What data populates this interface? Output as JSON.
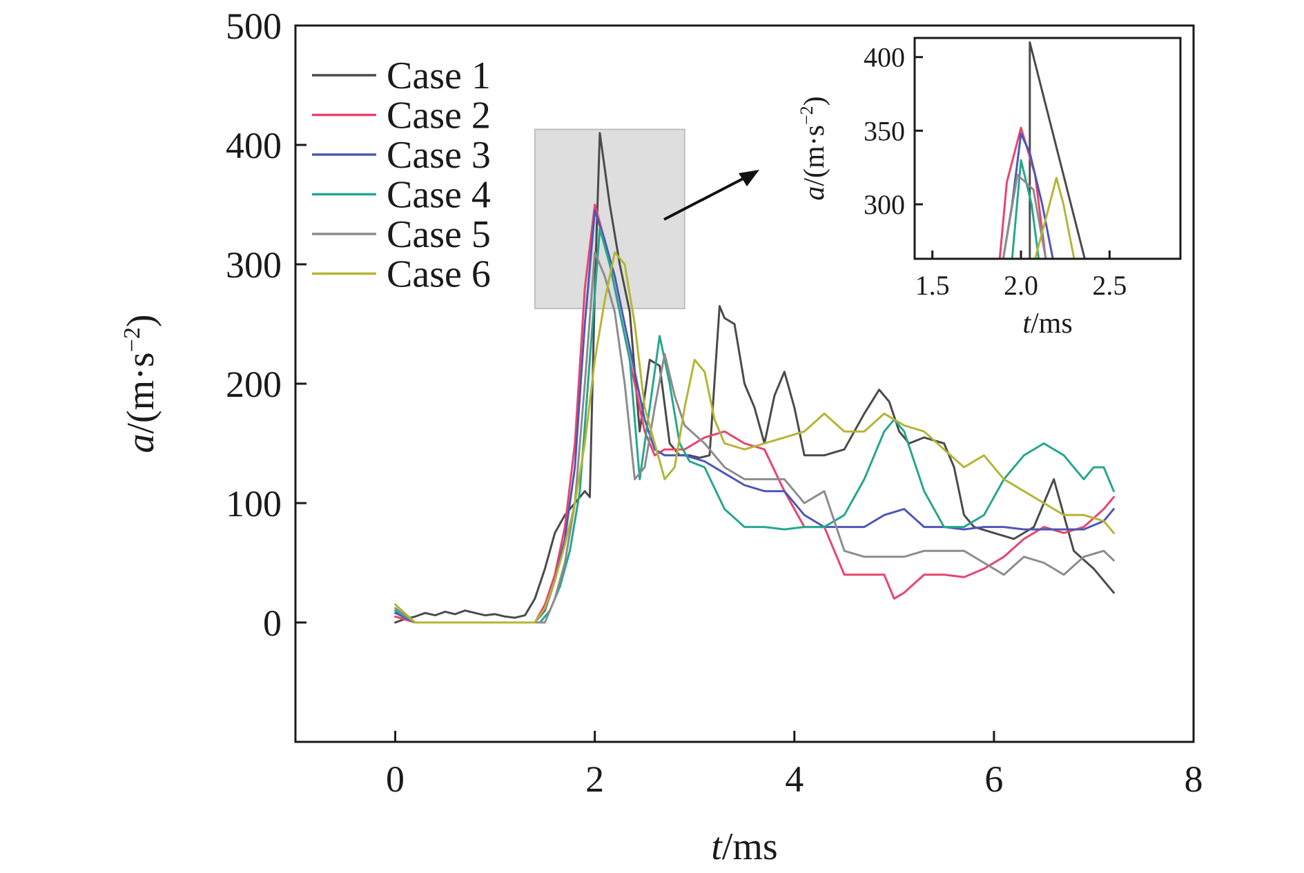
{
  "chart_data": {
    "type": "line",
    "xlabel_italic": "t",
    "xlabel_unit": "/ms",
    "ylabel_italic": "a",
    "ylabel_unit": "/(m·s",
    "ylabel_sup": "−2",
    "ylabel_close": ")",
    "xlim": [
      -1,
      8
    ],
    "ylim": [
      -100,
      500
    ],
    "xticks": [
      0,
      2,
      4,
      6,
      8
    ],
    "yticks": [
      0,
      100,
      200,
      300,
      400,
      500
    ],
    "grid": false,
    "legend_position": "top-left",
    "series": [
      {
        "name": "Case 1",
        "color": "#4a4a4a",
        "x": [
          0,
          0.1,
          0.2,
          0.3,
          0.4,
          0.5,
          0.6,
          0.7,
          0.8,
          0.9,
          1.0,
          1.1,
          1.2,
          1.3,
          1.4,
          1.5,
          1.6,
          1.7,
          1.8,
          1.9,
          1.95,
          2.0,
          2.05,
          2.15,
          2.25,
          2.35,
          2.45,
          2.55,
          2.65,
          2.75,
          2.85,
          2.95,
          3.05,
          3.15,
          3.25,
          3.3,
          3.4,
          3.5,
          3.6,
          3.7,
          3.8,
          3.9,
          4.0,
          4.1,
          4.2,
          4.3,
          4.5,
          4.7,
          4.85,
          4.95,
          5.05,
          5.15,
          5.3,
          5.5,
          5.6,
          5.7,
          5.8,
          6.0,
          6.2,
          6.4,
          6.6,
          6.8,
          7.0,
          7.2
        ],
        "y": [
          0,
          3,
          5,
          8,
          6,
          9,
          7,
          10,
          8,
          6,
          7,
          5,
          4,
          6,
          20,
          45,
          75,
          90,
          100,
          110,
          105,
          280,
          410,
          350,
          300,
          260,
          160,
          220,
          215,
          150,
          140,
          140,
          138,
          140,
          265,
          255,
          250,
          200,
          180,
          150,
          190,
          210,
          180,
          140,
          140,
          140,
          145,
          175,
          195,
          185,
          160,
          150,
          155,
          150,
          130,
          90,
          80,
          75,
          70,
          80,
          120,
          60,
          45,
          25
        ]
      },
      {
        "name": "Case 2",
        "color": "#e8446e",
        "x": [
          0,
          0.2,
          0.5,
          1.0,
          1.4,
          1.5,
          1.6,
          1.7,
          1.8,
          1.9,
          2.0,
          2.1,
          2.2,
          2.3,
          2.4,
          2.5,
          2.6,
          2.7,
          2.9,
          3.1,
          3.3,
          3.5,
          3.7,
          3.9,
          4.1,
          4.3,
          4.5,
          4.7,
          4.9,
          5.0,
          5.1,
          5.3,
          5.5,
          5.7,
          5.9,
          6.1,
          6.3,
          6.5,
          6.7,
          6.9,
          7.1,
          7.2
        ],
        "y": [
          5,
          0,
          0,
          0,
          0,
          15,
          40,
          80,
          150,
          280,
          350,
          320,
          280,
          240,
          200,
          160,
          140,
          145,
          145,
          155,
          160,
          150,
          145,
          110,
          80,
          80,
          40,
          40,
          40,
          20,
          25,
          40,
          40,
          38,
          45,
          55,
          70,
          80,
          75,
          80,
          95,
          105
        ]
      },
      {
        "name": "Case 3",
        "color": "#4c57b5",
        "x": [
          0,
          0.2,
          0.5,
          1.0,
          1.4,
          1.5,
          1.6,
          1.7,
          1.8,
          1.9,
          2.0,
          2.1,
          2.2,
          2.3,
          2.4,
          2.5,
          2.6,
          2.7,
          2.9,
          3.1,
          3.3,
          3.5,
          3.7,
          3.9,
          4.1,
          4.3,
          4.5,
          4.7,
          4.9,
          5.1,
          5.3,
          5.5,
          5.7,
          5.9,
          6.1,
          6.3,
          6.5,
          6.7,
          6.9,
          7.1,
          7.2
        ],
        "y": [
          8,
          0,
          0,
          0,
          0,
          10,
          35,
          70,
          130,
          250,
          345,
          320,
          290,
          250,
          210,
          170,
          145,
          140,
          140,
          135,
          125,
          115,
          110,
          110,
          90,
          80,
          80,
          80,
          90,
          95,
          80,
          80,
          78,
          80,
          80,
          78,
          78,
          78,
          78,
          85,
          95
        ]
      },
      {
        "name": "Case 4",
        "color": "#26a68e",
        "x": [
          0,
          0.2,
          0.5,
          1.0,
          1.45,
          1.55,
          1.65,
          1.75,
          1.85,
          1.95,
          2.05,
          2.15,
          2.25,
          2.35,
          2.45,
          2.55,
          2.65,
          2.75,
          2.85,
          2.95,
          3.1,
          3.3,
          3.5,
          3.7,
          3.9,
          4.1,
          4.3,
          4.5,
          4.7,
          4.9,
          5.0,
          5.1,
          5.3,
          5.5,
          5.7,
          5.9,
          6.1,
          6.3,
          6.5,
          6.7,
          6.9,
          7.0,
          7.1,
          7.2
        ],
        "y": [
          10,
          0,
          0,
          0,
          0,
          10,
          30,
          60,
          110,
          220,
          330,
          300,
          260,
          220,
          120,
          180,
          240,
          200,
          150,
          135,
          130,
          95,
          80,
          80,
          78,
          80,
          80,
          90,
          120,
          160,
          170,
          160,
          110,
          80,
          80,
          90,
          120,
          140,
          150,
          140,
          120,
          130,
          130,
          110
        ]
      },
      {
        "name": "Case 5",
        "color": "#8c8c8c",
        "x": [
          0,
          0.2,
          0.5,
          1.0,
          1.5,
          1.6,
          1.7,
          1.8,
          1.9,
          2.0,
          2.1,
          2.2,
          2.3,
          2.4,
          2.5,
          2.6,
          2.7,
          2.8,
          2.9,
          3.1,
          3.3,
          3.5,
          3.7,
          3.9,
          4.1,
          4.3,
          4.5,
          4.7,
          4.9,
          5.1,
          5.3,
          5.5,
          5.7,
          5.9,
          6.1,
          6.3,
          6.5,
          6.7,
          6.9,
          7.1,
          7.2
        ],
        "y": [
          12,
          0,
          0,
          0,
          0,
          20,
          50,
          100,
          200,
          310,
          290,
          260,
          200,
          120,
          130,
          180,
          225,
          190,
          165,
          150,
          130,
          120,
          120,
          120,
          100,
          110,
          60,
          55,
          55,
          55,
          60,
          60,
          60,
          50,
          40,
          55,
          50,
          40,
          55,
          60,
          52
        ]
      },
      {
        "name": "Case 6",
        "color": "#b3b534",
        "x": [
          0,
          0.2,
          0.5,
          1.0,
          1.4,
          1.5,
          1.6,
          1.7,
          1.8,
          1.9,
          2.0,
          2.1,
          2.2,
          2.3,
          2.4,
          2.5,
          2.6,
          2.7,
          2.8,
          2.9,
          3.0,
          3.1,
          3.2,
          3.3,
          3.5,
          3.7,
          3.9,
          4.1,
          4.3,
          4.5,
          4.7,
          4.9,
          5.1,
          5.3,
          5.5,
          5.7,
          5.9,
          6.1,
          6.3,
          6.5,
          6.7,
          6.9,
          7.1,
          7.2
        ],
        "y": [
          15,
          0,
          0,
          0,
          0,
          12,
          35,
          65,
          100,
          150,
          220,
          270,
          310,
          300,
          250,
          180,
          150,
          120,
          130,
          180,
          220,
          210,
          170,
          150,
          145,
          150,
          155,
          160,
          175,
          160,
          160,
          175,
          165,
          160,
          145,
          130,
          140,
          120,
          110,
          100,
          90,
          90,
          85,
          75
        ]
      }
    ],
    "inset": {
      "xlabel_italic": "t",
      "xlabel_unit": "/ms",
      "ylabel_italic": "a",
      "ylabel_unit": "/(m·s",
      "ylabel_sup": "−2",
      "ylabel_close": ")",
      "xlim": [
        1.4,
        2.9
      ],
      "ylim": [
        263,
        413
      ],
      "xtick_labels": [
        "1.5",
        "2.0",
        "2.5"
      ],
      "xticks": [
        1.5,
        2.0,
        2.5
      ],
      "yticks": [
        300,
        350,
        400
      ],
      "series": [
        {
          "name": "Case 1",
          "color": "#4a4a4a",
          "x": [
            2.05,
            2.05,
            2.36
          ],
          "y": [
            263,
            410,
            263
          ]
        },
        {
          "name": "Case 2",
          "color": "#e8446e",
          "x": [
            1.88,
            1.92,
            2.0,
            2.08,
            2.14
          ],
          "y": [
            263,
            315,
            352,
            320,
            263
          ]
        },
        {
          "name": "Case 3",
          "color": "#4c57b5",
          "x": [
            1.9,
            1.95,
            2.0,
            2.05,
            2.12,
            2.18
          ],
          "y": [
            263,
            300,
            348,
            335,
            300,
            263
          ]
        },
        {
          "name": "Case 4",
          "color": "#26a68e",
          "x": [
            1.95,
            2.0,
            2.06,
            2.1
          ],
          "y": [
            263,
            330,
            300,
            263
          ]
        },
        {
          "name": "Case 5",
          "color": "#8c8c8c",
          "x": [
            1.9,
            1.98,
            2.07,
            2.14
          ],
          "y": [
            263,
            320,
            310,
            263
          ]
        },
        {
          "name": "Case 6",
          "color": "#b3b534",
          "x": [
            2.08,
            2.14,
            2.2,
            2.24,
            2.3
          ],
          "y": [
            263,
            290,
            318,
            300,
            263
          ]
        }
      ]
    },
    "zoom_region": {
      "x": [
        1.4,
        2.9
      ],
      "y": [
        263,
        413
      ]
    }
  }
}
